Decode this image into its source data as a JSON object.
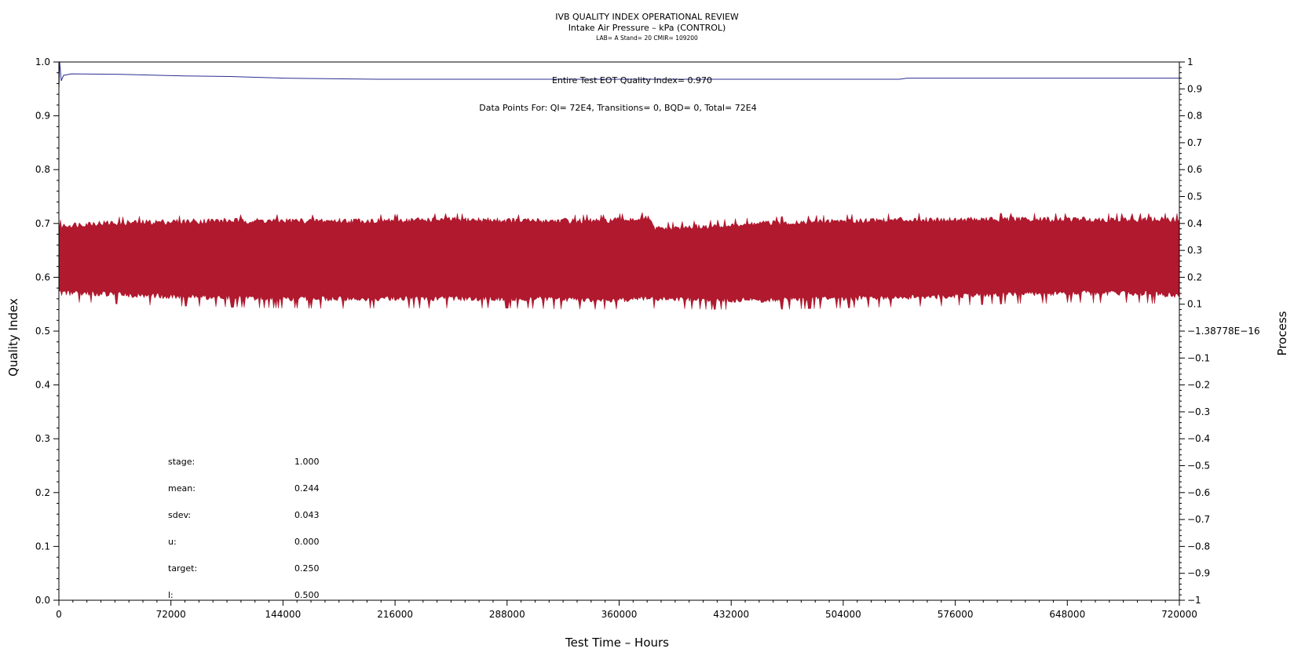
{
  "chart_data": {
    "type": "line",
    "title": "IVB QUALITY INDEX OPERATIONAL REVIEW",
    "subtitle": "Intake Air Pressure – kPa (CONTROL)",
    "subtitle2": "LAB= A Stand= 20 CMIR= 109200",
    "xlabel": "Test Time – Hours",
    "ylabel": "Quality Index",
    "y2label": "Process",
    "xlim": [
      0,
      720000
    ],
    "ylim": [
      0,
      1
    ],
    "y2lim": [
      -1,
      1
    ],
    "x_ticks": [
      "0",
      "72000",
      "144000",
      "216000",
      "288000",
      "360000",
      "432000",
      "504000",
      "576000",
      "648000",
      "720000"
    ],
    "y_ticks": [
      "0.0",
      "0.1",
      "0.2",
      "0.3",
      "0.4",
      "0.5",
      "0.6",
      "0.7",
      "0.8",
      "0.9",
      "1.0"
    ],
    "y2_ticks": [
      "−1",
      "−0.9",
      "−0.8",
      "−0.7",
      "−0.6",
      "−0.5",
      "−0.4",
      "−0.3",
      "−0.2",
      "−0.1",
      "−1.38778E−16",
      "0.1",
      "0.2",
      "0.3",
      "0.4",
      "0.5",
      "0.6",
      "0.7",
      "0.8",
      "0.9",
      "1"
    ],
    "annotations": {
      "eot": "Entire Test EOT Quality Index=   0.970",
      "points": "Data Points For: QI=  72E4, Transitions=     0, BQD=     0, Total=  72E4"
    },
    "stats": [
      {
        "label": "stage:",
        "value": "1.000"
      },
      {
        "label": "mean:",
        "value": "0.244"
      },
      {
        "label": "sdev:",
        "value": "0.043"
      },
      {
        "label": "u:",
        "value": "0.000"
      },
      {
        "label": "target:",
        "value": "0.250"
      },
      {
        "label": "l:",
        "value": "0.500"
      }
    ],
    "series": [
      {
        "axis": "left",
        "color": "#2b2f8f",
        "x": [
          0,
          500,
          1500,
          3000,
          8000,
          40000,
          80000,
          110000,
          145000,
          205000,
          540000,
          545000,
          720000
        ],
        "y": [
          0.95,
          1.0,
          0.965,
          0.975,
          0.978,
          0.977,
          0.974,
          0.973,
          0.97,
          0.968,
          0.968,
          0.97,
          0.97
        ]
      },
      {
        "axis": "right",
        "color": "#b0192e",
        "x": [
          0,
          20000,
          60000,
          100000,
          150000,
          200000,
          250000,
          300000,
          350000,
          380000,
          382000,
          420000,
          450000,
          500000,
          550000,
          600000,
          650000,
          700000,
          720000
        ],
        "y_max": [
          0.39,
          0.4,
          0.405,
          0.41,
          0.41,
          0.41,
          0.415,
          0.41,
          0.41,
          0.42,
          0.38,
          0.39,
          0.4,
          0.41,
          0.415,
          0.415,
          0.415,
          0.415,
          0.415
        ],
        "y_min": [
          0.14,
          0.14,
          0.13,
          0.125,
          0.12,
          0.12,
          0.12,
          0.12,
          0.115,
          0.12,
          0.12,
          0.115,
          0.115,
          0.12,
          0.125,
          0.135,
          0.14,
          0.14,
          0.13
        ]
      }
    ]
  }
}
